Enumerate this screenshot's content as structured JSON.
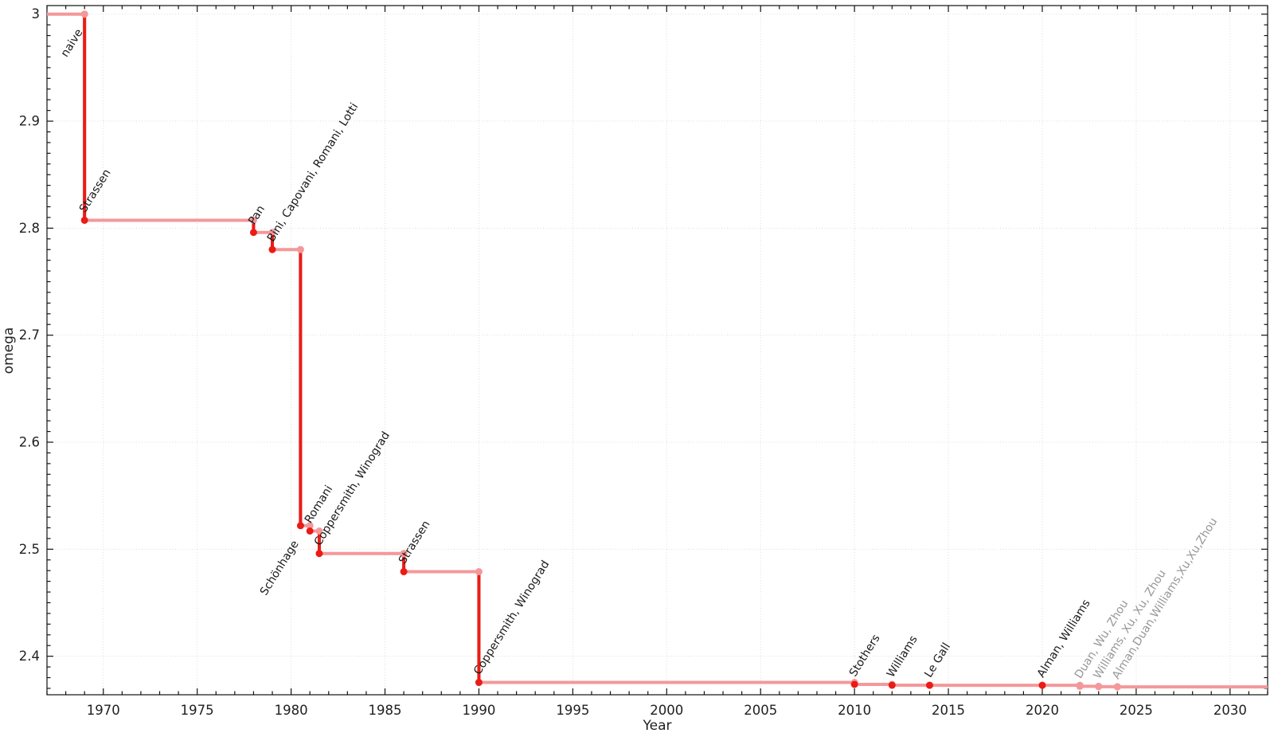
{
  "figure": {
    "name": "matrix-multiplication-omega-history",
    "background": "#ffffff"
  },
  "chart_data": {
    "type": "line",
    "subtype": "step-pre",
    "title": "",
    "xlabel": "Year",
    "ylabel": "omega",
    "legend": "none",
    "grid": "major-dotted",
    "x_range": [
      1967,
      2032
    ],
    "y_range": [
      2.364,
      3.008
    ],
    "x_major_ticks": [
      1970,
      1975,
      1980,
      1985,
      1990,
      1995,
      2000,
      2005,
      2010,
      2015,
      2020,
      2025,
      2030
    ],
    "x_minor_step": 1,
    "y_major_ticks": [
      {
        "value": 3.0,
        "label": "3"
      },
      {
        "value": 2.9,
        "label": "2.9"
      },
      {
        "value": 2.8,
        "label": "2.8"
      },
      {
        "value": 2.7,
        "label": "2.7"
      },
      {
        "value": 2.6,
        "label": "2.6"
      },
      {
        "value": 2.5,
        "label": "2.5"
      },
      {
        "value": 2.4,
        "label": "2.4"
      }
    ],
    "y_minor_step": 0.01,
    "colors": {
      "step_line": "#f4989a",
      "drop_line": "#ea1c15",
      "marker_new": "#ea1c15",
      "marker_step": "#f4989a",
      "label_dark": "#1a1a1a",
      "label_gray": "#979797",
      "axis": "#111111",
      "grid": "#dcdcdc",
      "tick_text": "#1f1f1f"
    },
    "points": [
      {
        "year": 1969,
        "omega": 3.0,
        "label": "naive",
        "label_placement": "below-left",
        "label_tone": "dark",
        "marker": "step"
      },
      {
        "year": 1969,
        "omega": 2.8074,
        "label": "Strassen",
        "label_placement": "above-right",
        "label_tone": "dark",
        "marker": "new"
      },
      {
        "year": 1978,
        "omega": 2.796,
        "label": "Pan",
        "label_placement": "above-right",
        "label_tone": "dark",
        "marker": "new"
      },
      {
        "year": 1979,
        "omega": 2.78,
        "label": "Bini, Capovani, Romani, Lotti",
        "label_placement": "above-right",
        "label_tone": "dark",
        "marker": "new"
      },
      {
        "year": 1980.5,
        "omega": 2.522,
        "label": "Schönhage",
        "label_placement": "below-left",
        "label_tone": "dark",
        "marker": "new"
      },
      {
        "year": 1981,
        "omega": 2.517,
        "label": "Romani",
        "label_placement": "above-right",
        "label_tone": "dark",
        "marker": "new"
      },
      {
        "year": 1981.5,
        "omega": 2.496,
        "label": "Coppersmith, Winograd",
        "label_placement": "above-right",
        "label_tone": "dark",
        "marker": "new"
      },
      {
        "year": 1986,
        "omega": 2.479,
        "label": "Strassen",
        "label_placement": "above-right",
        "label_tone": "dark",
        "marker": "new"
      },
      {
        "year": 1990,
        "omega": 2.3755,
        "label": "Coppersmith, Winograd",
        "label_placement": "above-right",
        "label_tone": "dark",
        "marker": "new"
      },
      {
        "year": 2010,
        "omega": 2.3737,
        "label": "Stothers",
        "label_placement": "above-right",
        "label_tone": "dark",
        "marker": "new"
      },
      {
        "year": 2012,
        "omega": 2.3729,
        "label": "Williams",
        "label_placement": "above-right",
        "label_tone": "dark",
        "marker": "new"
      },
      {
        "year": 2014,
        "omega": 2.3728639,
        "label": "Le Gall",
        "label_placement": "above-right",
        "label_tone": "dark",
        "marker": "new"
      },
      {
        "year": 2020,
        "omega": 2.3728596,
        "label": "Alman, Williams",
        "label_placement": "above-right",
        "label_tone": "dark",
        "marker": "new"
      },
      {
        "year": 2022,
        "omega": 2.371866,
        "label": "Duan, Wu, Zhou",
        "label_placement": "above-right",
        "label_tone": "gray",
        "marker": "step"
      },
      {
        "year": 2023,
        "omega": 2.371552,
        "label": "Williams, Xu, Xu, Zhou",
        "label_placement": "above-right",
        "label_tone": "gray",
        "marker": "step"
      },
      {
        "year": 2024,
        "omega": 2.371339,
        "label": "Alman,Duan,Williams,Xu,Xu,Zhou",
        "label_placement": "above-right",
        "label_tone": "gray",
        "marker": "step"
      }
    ]
  }
}
